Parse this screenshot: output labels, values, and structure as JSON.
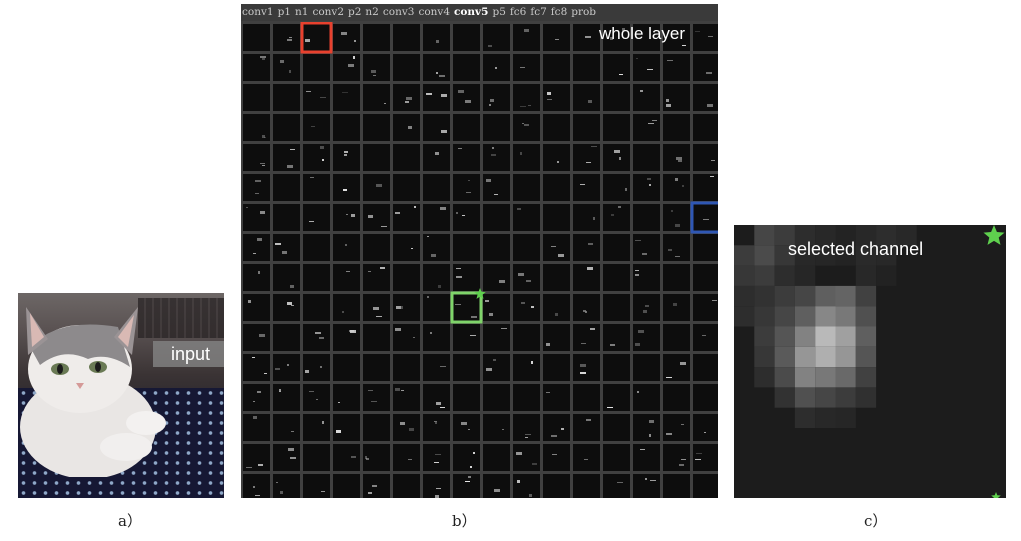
{
  "panels": {
    "input": {
      "caption": "a）",
      "label": "input"
    },
    "whole_layer": {
      "caption": "b）",
      "label": "whole layer",
      "layer_tabs": [
        {
          "label": "conv1",
          "active": false
        },
        {
          "label": "p1",
          "active": false
        },
        {
          "label": "n1",
          "active": false
        },
        {
          "label": "conv2",
          "active": false
        },
        {
          "label": "p2",
          "active": false
        },
        {
          "label": "n2",
          "active": false
        },
        {
          "label": "conv3",
          "active": false
        },
        {
          "label": "conv4",
          "active": false
        },
        {
          "label": "conv5",
          "active": true
        },
        {
          "label": "p5",
          "active": false
        },
        {
          "label": "fc6",
          "active": false
        },
        {
          "label": "fc7",
          "active": false
        },
        {
          "label": "fc8",
          "active": false
        },
        {
          "label": "prob",
          "active": false
        }
      ],
      "grid": {
        "rows": 16,
        "cols": 16
      },
      "highlights": [
        {
          "name": "red-highlight-box",
          "color": "#e8412e",
          "row": 0,
          "col": 2
        },
        {
          "name": "blue-highlight-box",
          "color": "#2f57b4",
          "row": 6,
          "col": 15
        },
        {
          "name": "green-highlight-box",
          "color": "#7fd46a",
          "row": 9,
          "col": 7,
          "selected": true
        }
      ]
    },
    "selected_channel": {
      "caption": "c）",
      "label": "selected channel",
      "star_color": "#5fd04e"
    }
  },
  "colors": {
    "grid_gap": "#404040",
    "cell_bg": "#0d0d0d",
    "channel_bg": "#1c1c1c"
  }
}
